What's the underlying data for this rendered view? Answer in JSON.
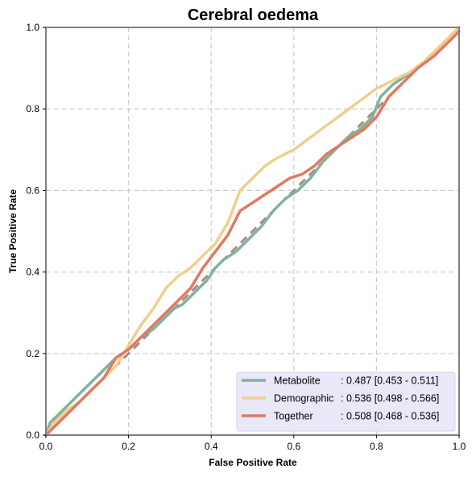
{
  "chart_data": {
    "type": "line",
    "title": "Cerebral oedema",
    "xlabel": "False Positive Rate",
    "ylabel": "True Positive Rate",
    "xlim": [
      0,
      1
    ],
    "ylim": [
      0,
      1
    ],
    "xticks": [
      "0.0",
      "0.2",
      "0.4",
      "0.6",
      "0.8",
      "1.0"
    ],
    "yticks": [
      "0.0",
      "0.2",
      "0.4",
      "0.6",
      "0.8",
      "1.0"
    ],
    "grid": true,
    "legend_position": "lower-right",
    "reference_line": {
      "x": [
        0,
        1
      ],
      "y": [
        0,
        1
      ],
      "color": "#a98b84",
      "style": "dashed"
    },
    "series": [
      {
        "name": "Metabolite",
        "auc_text": ": 0.487 [0.453 - 0.511]",
        "color": "#7fb49a",
        "x": [
          0,
          0.01,
          0.03,
          0.06,
          0.09,
          0.12,
          0.15,
          0.17,
          0.2,
          0.23,
          0.26,
          0.29,
          0.31,
          0.33,
          0.36,
          0.39,
          0.41,
          0.43,
          0.46,
          0.49,
          0.52,
          0.55,
          0.58,
          0.61,
          0.64,
          0.67,
          0.7,
          0.73,
          0.76,
          0.79,
          0.81,
          0.84,
          0.87,
          0.9,
          0.93,
          0.96,
          1.0
        ],
        "y": [
          0,
          0.03,
          0.05,
          0.08,
          0.11,
          0.14,
          0.17,
          0.19,
          0.21,
          0.24,
          0.26,
          0.29,
          0.31,
          0.32,
          0.35,
          0.38,
          0.41,
          0.43,
          0.45,
          0.48,
          0.51,
          0.55,
          0.58,
          0.6,
          0.63,
          0.67,
          0.7,
          0.73,
          0.75,
          0.78,
          0.83,
          0.86,
          0.88,
          0.9,
          0.93,
          0.96,
          1.0
        ]
      },
      {
        "name": "Demographic",
        "auc_text": ": 0.536 [0.498 - 0.566]",
        "color": "#f0cf8e",
        "x": [
          0,
          0.02,
          0.05,
          0.08,
          0.11,
          0.14,
          0.17,
          0.2,
          0.23,
          0.26,
          0.29,
          0.32,
          0.35,
          0.38,
          0.41,
          0.44,
          0.47,
          0.5,
          0.53,
          0.56,
          0.6,
          0.64,
          0.68,
          0.72,
          0.76,
          0.8,
          0.84,
          0.88,
          0.92,
          0.96,
          1.0
        ],
        "y": [
          0,
          0.03,
          0.06,
          0.08,
          0.11,
          0.14,
          0.17,
          0.22,
          0.27,
          0.31,
          0.36,
          0.39,
          0.41,
          0.44,
          0.47,
          0.52,
          0.6,
          0.63,
          0.66,
          0.68,
          0.7,
          0.73,
          0.76,
          0.79,
          0.82,
          0.85,
          0.87,
          0.89,
          0.92,
          0.96,
          1.0
        ]
      },
      {
        "name": "Together",
        "auc_text": ": 0.508 [0.468 - 0.536]",
        "color": "#e07a62",
        "x": [
          0,
          0.02,
          0.05,
          0.08,
          0.11,
          0.14,
          0.17,
          0.2,
          0.23,
          0.26,
          0.29,
          0.32,
          0.35,
          0.38,
          0.41,
          0.44,
          0.47,
          0.5,
          0.53,
          0.56,
          0.59,
          0.62,
          0.65,
          0.68,
          0.71,
          0.74,
          0.77,
          0.8,
          0.83,
          0.86,
          0.9,
          0.94,
          0.97,
          1.0
        ],
        "y": [
          0,
          0.02,
          0.05,
          0.08,
          0.11,
          0.14,
          0.19,
          0.21,
          0.24,
          0.27,
          0.3,
          0.33,
          0.36,
          0.41,
          0.45,
          0.49,
          0.55,
          0.57,
          0.59,
          0.61,
          0.63,
          0.64,
          0.66,
          0.69,
          0.71,
          0.73,
          0.75,
          0.78,
          0.83,
          0.86,
          0.9,
          0.93,
          0.96,
          0.99
        ]
      }
    ]
  }
}
